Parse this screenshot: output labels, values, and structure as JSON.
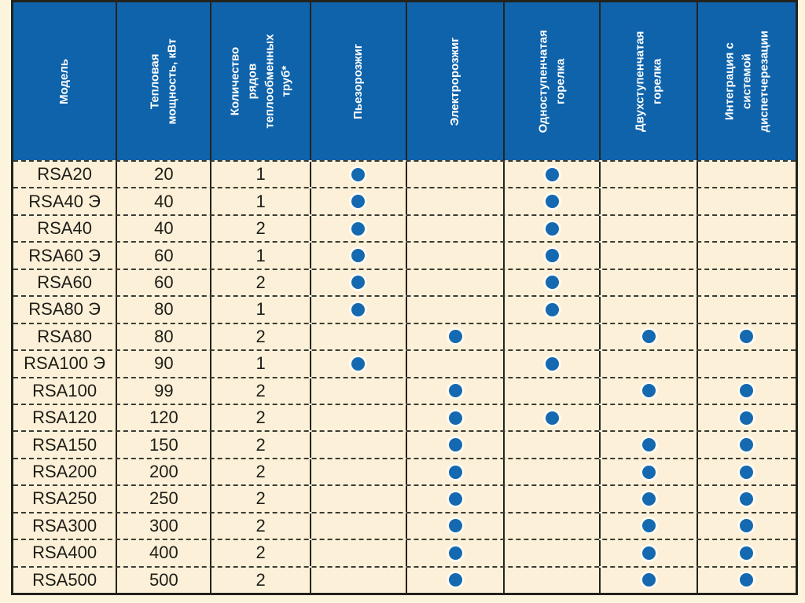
{
  "colors": {
    "header_bg": "#0f63ab",
    "header_text": "#ffffff",
    "cell_bg": "#fcf1d8",
    "page_bg": "#fdf4dd",
    "dot": "#1469b0",
    "border": "#23231e",
    "body_text": "#1f1d18"
  },
  "dot_glyph": "filled-circle",
  "table": {
    "columns": [
      {
        "field": "model",
        "type": "text",
        "label": "Модель"
      },
      {
        "field": "power",
        "type": "text",
        "label": "Тепловая\nмощность, кВт"
      },
      {
        "field": "tube_rows",
        "type": "text",
        "label": "Количество\nрядов\nтеплообменных\nтруб*"
      },
      {
        "field": "piezo",
        "type": "flag",
        "label": "Пьезорозжиг"
      },
      {
        "field": "electric",
        "type": "flag",
        "label": "Электророзжиг"
      },
      {
        "field": "single_stage",
        "type": "flag",
        "label": "Одноступенчатая\nгорелка"
      },
      {
        "field": "two_stage",
        "type": "flag",
        "label": "Двухступенчатая\nгорелка"
      },
      {
        "field": "integration",
        "type": "flag",
        "label": "Интеграция с\nсистемой\nдиспетчерезации"
      }
    ],
    "rows": [
      {
        "model": "RSA20",
        "power": "20",
        "tube_rows": "1",
        "piezo": true,
        "electric": false,
        "single_stage": true,
        "two_stage": false,
        "integration": false
      },
      {
        "model": "RSA40 Э",
        "power": "40",
        "tube_rows": "1",
        "piezo": true,
        "electric": false,
        "single_stage": true,
        "two_stage": false,
        "integration": false
      },
      {
        "model": "RSA40",
        "power": "40",
        "tube_rows": "2",
        "piezo": true,
        "electric": false,
        "single_stage": true,
        "two_stage": false,
        "integration": false
      },
      {
        "model": "RSA60 Э",
        "power": "60",
        "tube_rows": "1",
        "piezo": true,
        "electric": false,
        "single_stage": true,
        "two_stage": false,
        "integration": false
      },
      {
        "model": "RSA60",
        "power": "60",
        "tube_rows": "2",
        "piezo": true,
        "electric": false,
        "single_stage": true,
        "two_stage": false,
        "integration": false
      },
      {
        "model": "RSA80 Э",
        "power": "80",
        "tube_rows": "1",
        "piezo": true,
        "electric": false,
        "single_stage": true,
        "two_stage": false,
        "integration": false
      },
      {
        "model": "RSA80",
        "power": "80",
        "tube_rows": "2",
        "piezo": false,
        "electric": true,
        "single_stage": false,
        "two_stage": true,
        "integration": true
      },
      {
        "model": "RSA100 Э",
        "power": "90",
        "tube_rows": "1",
        "piezo": true,
        "electric": false,
        "single_stage": true,
        "two_stage": false,
        "integration": false
      },
      {
        "model": "RSA100",
        "power": "99",
        "tube_rows": "2",
        "piezo": false,
        "electric": true,
        "single_stage": false,
        "two_stage": true,
        "integration": true
      },
      {
        "model": "RSA120",
        "power": "120",
        "tube_rows": "2",
        "piezo": false,
        "electric": true,
        "single_stage": true,
        "two_stage": false,
        "integration": true
      },
      {
        "model": "RSA150",
        "power": "150",
        "tube_rows": "2",
        "piezo": false,
        "electric": true,
        "single_stage": false,
        "two_stage": true,
        "integration": true
      },
      {
        "model": "RSA200",
        "power": "200",
        "tube_rows": "2",
        "piezo": false,
        "electric": true,
        "single_stage": false,
        "two_stage": true,
        "integration": true
      },
      {
        "model": "RSA250",
        "power": "250",
        "tube_rows": "2",
        "piezo": false,
        "electric": true,
        "single_stage": false,
        "two_stage": true,
        "integration": true
      },
      {
        "model": "RSA300",
        "power": "300",
        "tube_rows": "2",
        "piezo": false,
        "electric": true,
        "single_stage": false,
        "two_stage": true,
        "integration": true
      },
      {
        "model": "RSA400",
        "power": "400",
        "tube_rows": "2",
        "piezo": false,
        "electric": true,
        "single_stage": false,
        "two_stage": true,
        "integration": true
      },
      {
        "model": "RSA500",
        "power": "500",
        "tube_rows": "2",
        "piezo": false,
        "electric": true,
        "single_stage": false,
        "two_stage": true,
        "integration": true
      }
    ]
  }
}
